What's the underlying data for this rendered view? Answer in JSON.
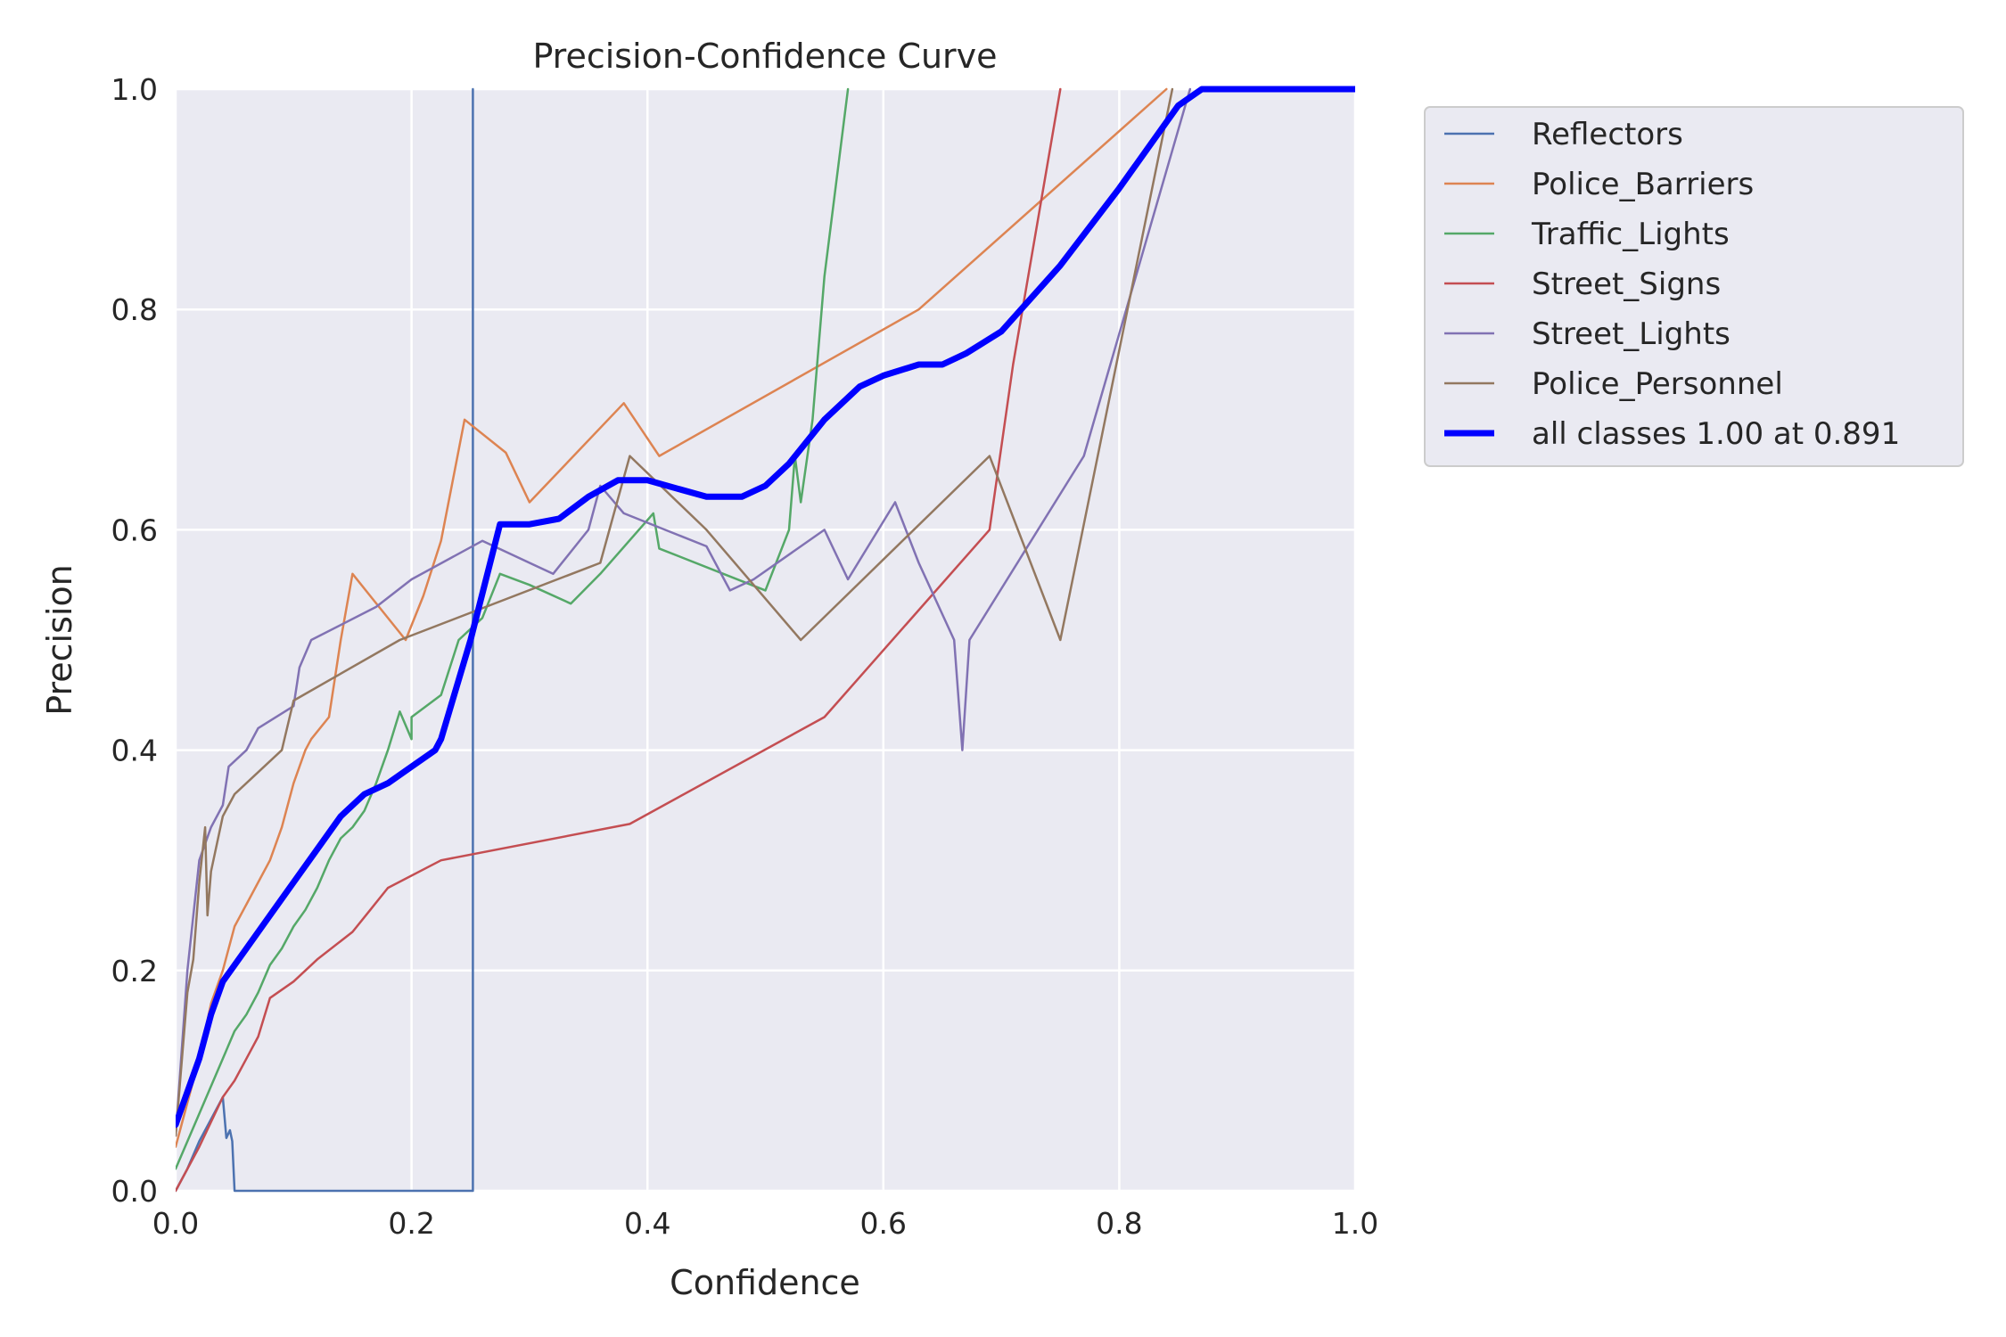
{
  "chart_data": {
    "type": "line",
    "title": "Precision-Confidence Curve",
    "xlabel": "Confidence",
    "ylabel": "Precision",
    "xlim": [
      0,
      1
    ],
    "ylim": [
      0,
      1
    ],
    "xticks": [
      "0.0",
      "0.2",
      "0.4",
      "0.6",
      "0.8",
      "1.0"
    ],
    "yticks": [
      "0.0",
      "0.2",
      "0.4",
      "0.6",
      "0.8",
      "1.0"
    ],
    "grid": true,
    "legend_position": "outside-top-right",
    "series": [
      {
        "name": "Reflectors",
        "color": "#4c72b0",
        "width": 2.5,
        "x": [
          0.0,
          0.01,
          0.02,
          0.03,
          0.035,
          0.04,
          0.043,
          0.046,
          0.048,
          0.05,
          0.252,
          0.252
        ],
        "y": [
          0.0,
          0.02,
          0.045,
          0.065,
          0.075,
          0.085,
          0.048,
          0.055,
          0.045,
          0.0,
          0.0,
          1.0
        ]
      },
      {
        "name": "Police_Barriers",
        "color": "#dd8452",
        "width": 2.5,
        "x": [
          0.0,
          0.01,
          0.02,
          0.03,
          0.04,
          0.05,
          0.06,
          0.07,
          0.08,
          0.09,
          0.1,
          0.11,
          0.115,
          0.13,
          0.14,
          0.145,
          0.15,
          0.165,
          0.195,
          0.21,
          0.225,
          0.245,
          0.28,
          0.3,
          0.38,
          0.41,
          0.63,
          0.84
        ],
        "y": [
          0.04,
          0.08,
          0.12,
          0.17,
          0.2,
          0.24,
          0.26,
          0.28,
          0.3,
          0.33,
          0.37,
          0.4,
          0.41,
          0.43,
          0.5,
          0.53,
          0.56,
          0.54,
          0.5,
          0.54,
          0.59,
          0.7,
          0.67,
          0.625,
          0.715,
          0.667,
          0.8,
          1.0
        ]
      },
      {
        "name": "Traffic_Lights",
        "color": "#55a868",
        "width": 2.5,
        "x": [
          0.0,
          0.02,
          0.04,
          0.05,
          0.06,
          0.07,
          0.08,
          0.09,
          0.1,
          0.11,
          0.12,
          0.13,
          0.14,
          0.15,
          0.16,
          0.17,
          0.18,
          0.19,
          0.2,
          0.2,
          0.225,
          0.24,
          0.26,
          0.275,
          0.3,
          0.335,
          0.36,
          0.405,
          0.41,
          0.5,
          0.52,
          0.525,
          0.53,
          0.54,
          0.55,
          0.57
        ],
        "y": [
          0.02,
          0.07,
          0.12,
          0.145,
          0.16,
          0.18,
          0.205,
          0.22,
          0.24,
          0.255,
          0.275,
          0.3,
          0.32,
          0.33,
          0.345,
          0.37,
          0.4,
          0.435,
          0.41,
          0.43,
          0.45,
          0.5,
          0.52,
          0.56,
          0.55,
          0.533,
          0.56,
          0.615,
          0.583,
          0.545,
          0.6,
          0.667,
          0.625,
          0.7,
          0.83,
          1.0
        ]
      },
      {
        "name": "Street_Signs",
        "color": "#c44e52",
        "width": 2.5,
        "x": [
          0.0,
          0.02,
          0.04,
          0.05,
          0.06,
          0.07,
          0.08,
          0.1,
          0.12,
          0.15,
          0.165,
          0.18,
          0.225,
          0.385,
          0.55,
          0.69,
          0.71,
          0.75
        ],
        "y": [
          0.0,
          0.04,
          0.085,
          0.1,
          0.12,
          0.14,
          0.175,
          0.19,
          0.21,
          0.235,
          0.255,
          0.275,
          0.3,
          0.333,
          0.43,
          0.6,
          0.75,
          1.0
        ]
      },
      {
        "name": "Street_Lights",
        "color": "#8172b3",
        "width": 2.5,
        "x": [
          0.0,
          0.01,
          0.02,
          0.03,
          0.04,
          0.045,
          0.06,
          0.07,
          0.1,
          0.105,
          0.115,
          0.17,
          0.2,
          0.26,
          0.32,
          0.35,
          0.36,
          0.38,
          0.45,
          0.47,
          0.49,
          0.55,
          0.57,
          0.61,
          0.63,
          0.66,
          0.667,
          0.673,
          0.77,
          0.86
        ],
        "y": [
          0.05,
          0.2,
          0.3,
          0.33,
          0.35,
          0.385,
          0.4,
          0.42,
          0.44,
          0.475,
          0.5,
          0.53,
          0.555,
          0.59,
          0.56,
          0.6,
          0.64,
          0.615,
          0.585,
          0.545,
          0.555,
          0.6,
          0.555,
          0.625,
          0.57,
          0.5,
          0.4,
          0.5,
          0.667,
          1.0
        ]
      },
      {
        "name": "Police_Personnel",
        "color": "#937860",
        "width": 2.5,
        "x": [
          0.0,
          0.01,
          0.015,
          0.02,
          0.025,
          0.027,
          0.03,
          0.04,
          0.05,
          0.09,
          0.1,
          0.19,
          0.36,
          0.385,
          0.45,
          0.53,
          0.69,
          0.75,
          0.845
        ],
        "y": [
          0.05,
          0.18,
          0.21,
          0.28,
          0.33,
          0.25,
          0.29,
          0.34,
          0.36,
          0.4,
          0.445,
          0.5,
          0.57,
          0.667,
          0.6,
          0.5,
          0.667,
          0.5,
          1.0
        ]
      },
      {
        "name": "all classes 1.00 at 0.891",
        "color": "#0000ff",
        "width": 7,
        "x": [
          0.0,
          0.02,
          0.03,
          0.04,
          0.06,
          0.08,
          0.1,
          0.12,
          0.14,
          0.16,
          0.18,
          0.2,
          0.22,
          0.225,
          0.25,
          0.275,
          0.3,
          0.325,
          0.35,
          0.375,
          0.4,
          0.45,
          0.48,
          0.5,
          0.52,
          0.55,
          0.58,
          0.6,
          0.63,
          0.65,
          0.67,
          0.7,
          0.75,
          0.8,
          0.85,
          0.87,
          0.9,
          1.0
        ],
        "y": [
          0.06,
          0.12,
          0.16,
          0.19,
          0.22,
          0.25,
          0.28,
          0.31,
          0.34,
          0.36,
          0.37,
          0.385,
          0.4,
          0.41,
          0.5,
          0.605,
          0.605,
          0.61,
          0.63,
          0.645,
          0.645,
          0.63,
          0.63,
          0.64,
          0.66,
          0.7,
          0.73,
          0.74,
          0.75,
          0.75,
          0.76,
          0.78,
          0.84,
          0.91,
          0.985,
          1.0,
          1.0,
          1.0
        ]
      }
    ]
  }
}
